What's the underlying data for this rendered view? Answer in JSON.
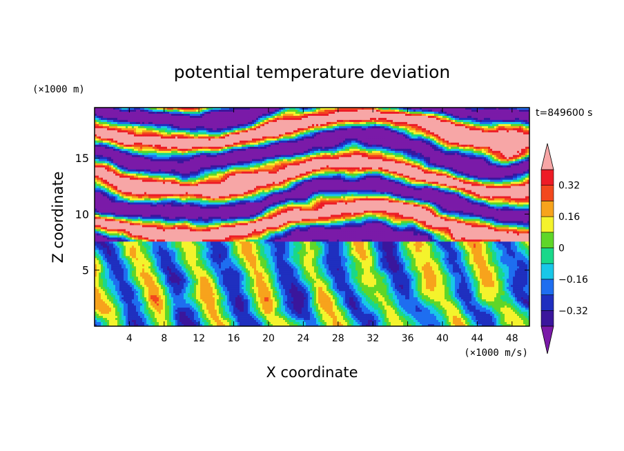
{
  "chart_data": {
    "type": "heatmap",
    "title": "potential temperature deviation",
    "xlabel": "X coordinate",
    "ylabel": "Z coordinate",
    "x_unit": "(×1000 m/s)",
    "y_unit": "(×1000 m)",
    "time_label": "t=849600 s",
    "xlim": [
      0,
      50
    ],
    "ylim": [
      0,
      19.5
    ],
    "x_ticks": [
      4,
      8,
      12,
      16,
      20,
      24,
      28,
      32,
      36,
      40,
      44,
      48
    ],
    "y_ticks": [
      5,
      10,
      15
    ],
    "x_tick_labels": [
      "4",
      "8",
      "12",
      "16",
      "20",
      "24",
      "28",
      "32",
      "36",
      "40",
      "44",
      "48"
    ],
    "y_tick_labels": [
      "5",
      "10",
      "15"
    ],
    "colorbar": {
      "levels": [
        -0.4,
        -0.32,
        -0.24,
        -0.16,
        -0.08,
        0,
        0.08,
        0.16,
        0.24,
        0.32,
        0.4
      ],
      "tick_values": [
        0.32,
        0.16,
        0,
        -0.16,
        -0.32
      ],
      "tick_labels": [
        "0.32",
        "0.16",
        "0",
        "−0.16",
        "−0.32"
      ],
      "colors_low_to_high": [
        "#7a1aa8",
        "#3a169c",
        "#1f2fbf",
        "#1e6ef0",
        "#19c7e8",
        "#19d88a",
        "#5fd628",
        "#f4f32c",
        "#f7a31c",
        "#f2481e",
        "#ed1c26",
        "#f7a6a6"
      ],
      "under_color": "#7a1aa8",
      "over_color": "#f7a6a6"
    }
  }
}
